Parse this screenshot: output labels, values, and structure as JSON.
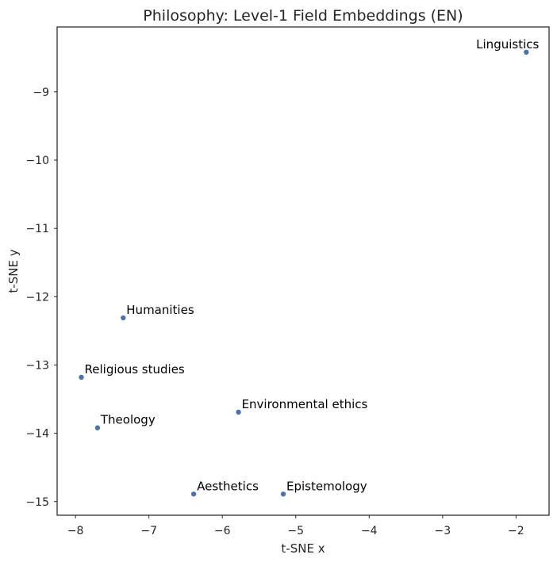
{
  "chart_data": {
    "type": "scatter",
    "title": "Philosophy: Level-1 Field Embeddings (EN)",
    "xlabel": "t-SNE x",
    "ylabel": "t-SNE y",
    "xlim": [
      -8.25,
      -1.55
    ],
    "ylim": [
      -15.2,
      -8.05
    ],
    "xticks": [
      -8,
      -7,
      -6,
      -5,
      -4,
      -3,
      -2
    ],
    "xtick_labels": [
      "−8",
      "−7",
      "−6",
      "−5",
      "−4",
      "−3",
      "−2"
    ],
    "yticks": [
      -15,
      -14,
      -13,
      -12,
      -11,
      -10,
      -9
    ],
    "ytick_labels": [
      "−15",
      "−14",
      "−13",
      "−12",
      "−11",
      "−10",
      "−9"
    ],
    "grid": false,
    "point_color": "#4c72b0",
    "points": [
      {
        "label": "Linguistics",
        "x": -1.86,
        "y": -8.42
      },
      {
        "label": "Humanities",
        "x": -7.35,
        "y": -12.31
      },
      {
        "label": "Religious studies",
        "x": -7.92,
        "y": -13.18
      },
      {
        "label": "Environmental ethics",
        "x": -5.78,
        "y": -13.69
      },
      {
        "label": "Theology",
        "x": -7.7,
        "y": -13.92
      },
      {
        "label": "Aesthetics",
        "x": -6.39,
        "y": -14.89
      },
      {
        "label": "Epistemology",
        "x": -5.17,
        "y": -14.89
      }
    ]
  }
}
